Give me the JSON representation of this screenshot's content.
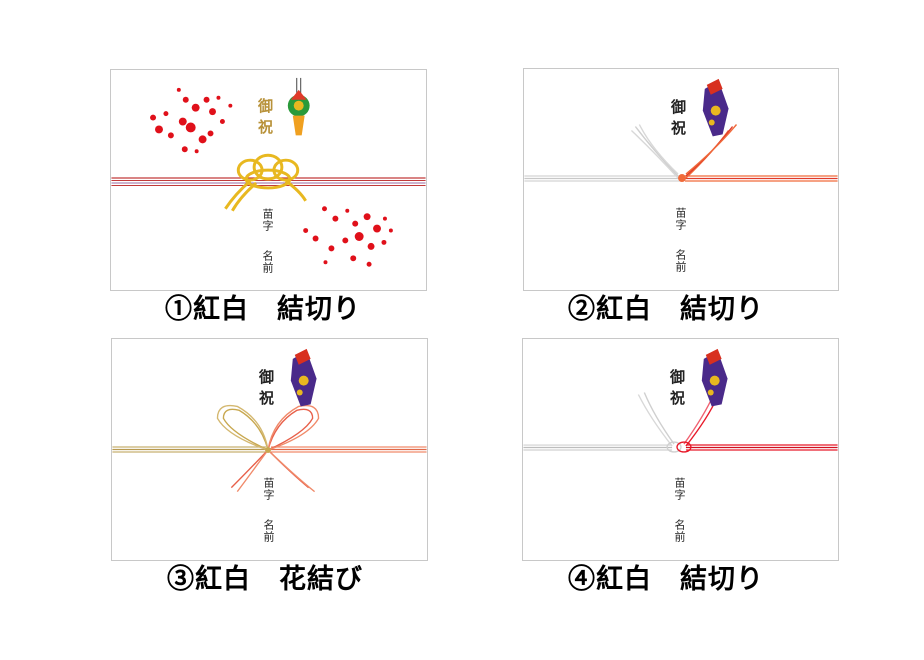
{
  "cards": [
    {
      "num": "①",
      "mizuhiki": "紅白",
      "knot": "結切り",
      "greeting": "御祝",
      "surname": "苗字",
      "given_name": "名前"
    },
    {
      "num": "②",
      "mizuhiki": "紅白",
      "knot": "結切り",
      "greeting": "御祝",
      "surname": "苗字",
      "given_name": "名前"
    },
    {
      "num": "③",
      "mizuhiki": "紅白",
      "knot": "花結び",
      "greeting": "御祝",
      "surname": "苗字",
      "given_name": "名前"
    },
    {
      "num": "④",
      "mizuhiki": "紅白",
      "knot": "結切り",
      "greeting": "御祝",
      "surname": "苗字",
      "given_name": "名前"
    }
  ],
  "colors": {
    "red": "#e03a2a",
    "orange": "#f06a3a",
    "gold": "#e8b820",
    "silver": "#d4d4d4",
    "plum": "#e0101a",
    "noshi_purple": "#4a2a8a",
    "noshi_red": "#d8301f"
  }
}
